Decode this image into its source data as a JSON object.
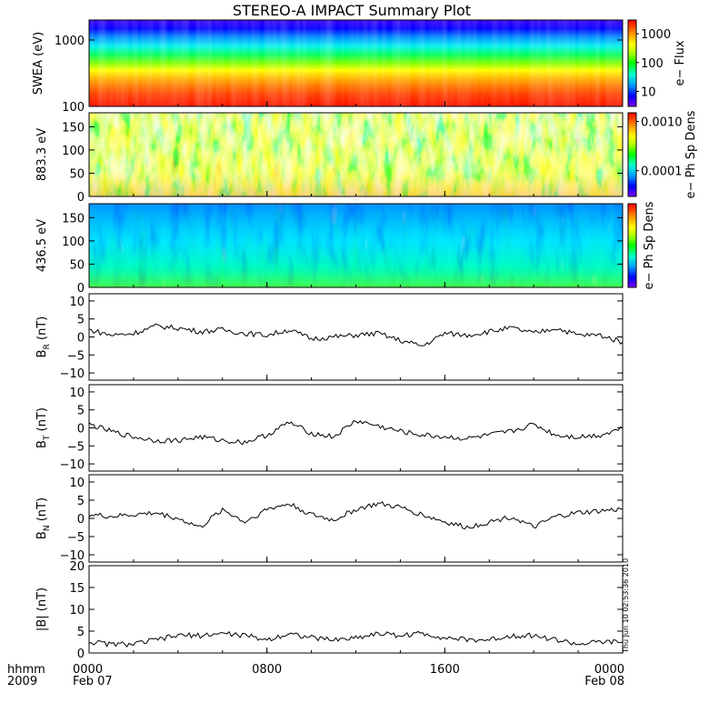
{
  "title": "STEREO-A IMPACT Summary Plot",
  "timestamp": "Thu Jun 10 02:53:36 2010",
  "x_axis": {
    "row_label_1": "hhmm",
    "row_label_2": "2009",
    "ticks": [
      {
        "hour": 0,
        "label": "0000",
        "sublabel": "Feb 07"
      },
      {
        "hour": 8,
        "label": "0800",
        "sublabel": ""
      },
      {
        "hour": 16,
        "label": "1600",
        "sublabel": ""
      },
      {
        "hour": 24,
        "label": "0000",
        "sublabel": "Feb 08"
      }
    ],
    "range_hours": [
      0,
      24
    ]
  },
  "colors": {
    "line": "#000000",
    "colorbar": [
      "#7f00ff",
      "#0000ff",
      "#00a0ff",
      "#00ffd0",
      "#00ff00",
      "#b0ff00",
      "#ffff00",
      "#ffa000",
      "#ff4000",
      "#ff0000"
    ]
  },
  "chart_data": [
    {
      "type": "heatmap",
      "ylabel": "SWEA (eV)",
      "yscale": "log",
      "ylim": [
        100,
        2000
      ],
      "yticks": [
        {
          "value": 100,
          "label": "100"
        },
        {
          "value": 1000,
          "label": "1000"
        }
      ],
      "colorbar": {
        "label": "e− Flux",
        "scale": "log",
        "range": [
          3,
          3000
        ],
        "ticks": [
          {
            "value": 10,
            "label": "10"
          },
          {
            "value": 100,
            "label": "100"
          },
          {
            "value": 1000,
            "label": "1000"
          }
        ]
      }
    },
    {
      "type": "heatmap",
      "ylabel": "883.3 eV",
      "ylim": [
        0,
        180
      ],
      "yticks": [
        {
          "value": 0,
          "label": "0"
        },
        {
          "value": 50,
          "label": "50"
        },
        {
          "value": 100,
          "label": "100"
        },
        {
          "value": 150,
          "label": "150"
        }
      ],
      "colorbar": {
        "label": "e− Ph Sp Dens",
        "scale": "log",
        "range": [
          3e-05,
          0.0015
        ],
        "ticks": [
          {
            "value": 0.0001,
            "label": "0.0001"
          },
          {
            "value": 0.001,
            "label": "0.0010"
          }
        ]
      }
    },
    {
      "type": "heatmap",
      "ylabel": "436.5 eV",
      "ylim": [
        0,
        180
      ],
      "yticks": [
        {
          "value": 0,
          "label": "0"
        },
        {
          "value": 50,
          "label": "50"
        },
        {
          "value": 100,
          "label": "100"
        },
        {
          "value": 150,
          "label": "150"
        }
      ],
      "colorbar": {
        "label": "e− Ph Sp Dens",
        "ticks": []
      }
    },
    {
      "type": "line",
      "ylabel_main": "B",
      "ylabel_sub": "R",
      "ylabel_unit": " (nT)",
      "ylim": [
        -12,
        12
      ],
      "yticks": [
        {
          "value": -10,
          "label": "−10"
        },
        {
          "value": -5,
          "label": "−5"
        },
        {
          "value": 0,
          "label": "0"
        },
        {
          "value": 5,
          "label": "5"
        },
        {
          "value": 10,
          "label": "10"
        }
      ],
      "x": [
        0,
        1,
        2,
        3,
        4,
        5,
        6,
        7,
        8,
        9,
        10,
        11,
        12,
        13,
        14,
        15,
        16,
        17,
        18,
        19,
        20,
        21,
        22,
        23,
        24
      ],
      "y": [
        2,
        0.5,
        1,
        3,
        2.5,
        1.5,
        2,
        1,
        0.5,
        2,
        -0.5,
        0,
        0.5,
        1,
        -1,
        -2.5,
        1,
        0.5,
        1.5,
        2.5,
        1,
        2.5,
        0.5,
        0.5,
        -1.5
      ]
    },
    {
      "type": "line",
      "ylabel_main": "B",
      "ylabel_sub": "T",
      "ylabel_unit": " (nT)",
      "ylim": [
        -12,
        12
      ],
      "yticks": [
        {
          "value": -10,
          "label": "−10"
        },
        {
          "value": -5,
          "label": "−5"
        },
        {
          "value": 0,
          "label": "0"
        },
        {
          "value": 5,
          "label": "5"
        },
        {
          "value": 10,
          "label": "10"
        }
      ],
      "x": [
        0,
        1,
        2,
        3,
        4,
        5,
        6,
        7,
        8,
        9,
        10,
        11,
        12,
        13,
        14,
        15,
        16,
        17,
        18,
        19,
        20,
        21,
        22,
        23,
        24
      ],
      "y": [
        1,
        -1,
        -2.5,
        -3.5,
        -3.5,
        -2.5,
        -3.5,
        -4,
        -2,
        1.5,
        -1.5,
        -2.5,
        2,
        0.5,
        -1,
        -2,
        -2.5,
        -3,
        -2,
        -1,
        1,
        -2,
        -2.5,
        -2,
        0
      ]
    },
    {
      "type": "line",
      "ylabel_main": "B",
      "ylabel_sub": "N",
      "ylabel_unit": " (nT)",
      "ylim": [
        -12,
        12
      ],
      "yticks": [
        {
          "value": -10,
          "label": "−10"
        },
        {
          "value": -5,
          "label": "−5"
        },
        {
          "value": 0,
          "label": "0"
        },
        {
          "value": 5,
          "label": "5"
        },
        {
          "value": 10,
          "label": "10"
        }
      ],
      "x": [
        0,
        1,
        2,
        3,
        4,
        5,
        6,
        7,
        8,
        9,
        10,
        11,
        12,
        13,
        14,
        15,
        16,
        17,
        18,
        19,
        20,
        21,
        22,
        23,
        24
      ],
      "y": [
        1,
        0.5,
        1,
        1.5,
        0,
        -2.5,
        2.5,
        -1,
        2.5,
        4,
        1,
        -0.5,
        2.5,
        4,
        3,
        1,
        -1,
        -2.5,
        -1,
        0.5,
        -2.5,
        0.5,
        1.5,
        2,
        2.5
      ]
    },
    {
      "type": "line",
      "ylabel": "|B| (nT)",
      "ylim": [
        0,
        20
      ],
      "yticks": [
        {
          "value": 0,
          "label": "0"
        },
        {
          "value": 5,
          "label": "5"
        },
        {
          "value": 10,
          "label": "10"
        },
        {
          "value": 15,
          "label": "15"
        },
        {
          "value": 20,
          "label": "20"
        }
      ],
      "x": [
        0,
        1,
        2,
        3,
        4,
        5,
        6,
        7,
        8,
        9,
        10,
        11,
        12,
        13,
        14,
        15,
        16,
        17,
        18,
        19,
        20,
        21,
        22,
        23,
        24
      ],
      "y": [
        2.5,
        2,
        2,
        3,
        4,
        4,
        4.5,
        4,
        3,
        4.5,
        3.5,
        3,
        3.5,
        4.5,
        4,
        4.5,
        3.5,
        3,
        3,
        4,
        4,
        3,
        2,
        2.5,
        2.5
      ]
    }
  ]
}
